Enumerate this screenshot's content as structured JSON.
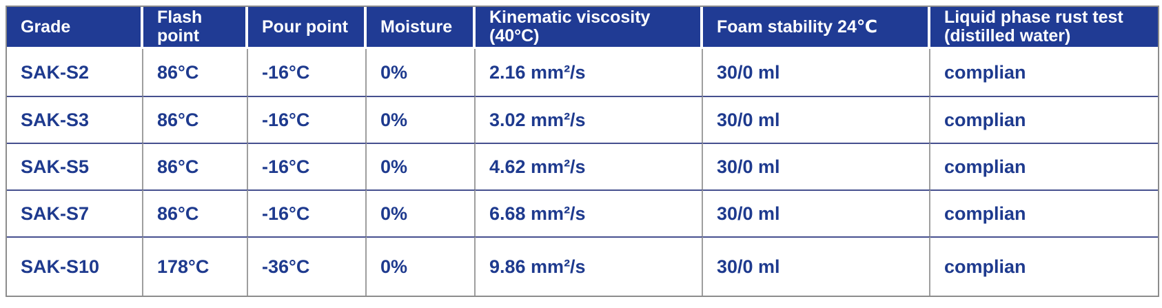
{
  "colors": {
    "header_bg": "#203b94",
    "header_text": "#ffffff",
    "cell_text": "#1e3a8e",
    "row_divider": "#454f8e",
    "column_divider": "#9e9e9e",
    "outer_border": "#8c8c8c"
  },
  "table": {
    "columns": [
      {
        "id": "grade",
        "label": "Grade"
      },
      {
        "id": "flash-point",
        "label": "Flash point"
      },
      {
        "id": "pour-point",
        "label": "Pour point"
      },
      {
        "id": "moisture",
        "label": "Moisture"
      },
      {
        "id": "kinematic-viscosity",
        "label": "Kinematic viscosity\n(40°C)"
      },
      {
        "id": "foam-stability",
        "label": "Foam stability 24℃"
      },
      {
        "id": "rust-test",
        "label": "Liquid phase rust test\n(distilled water)"
      }
    ],
    "rows": [
      {
        "cells": [
          "SAK-S2",
          "86°C",
          "-16°C",
          "0%",
          "2.16 mm²/s",
          "30/0 ml",
          "complian"
        ]
      },
      {
        "cells": [
          "SAK-S3",
          "86°C",
          "-16°C",
          "0%",
          "3.02 mm²/s",
          "30/0 ml",
          "complian"
        ]
      },
      {
        "cells": [
          "SAK-S5",
          "86°C",
          "-16°C",
          "0%",
          "4.62 mm²/s",
          "30/0 ml",
          "complian"
        ]
      },
      {
        "cells": [
          "SAK-S7",
          "86°C",
          "-16°C",
          "0%",
          "6.68 mm²/s",
          "30/0 ml",
          "complian"
        ]
      },
      {
        "cells": [
          "SAK-S10",
          "178°C",
          "-36°C",
          "0%",
          "9.86 mm²/s",
          "30/0 ml",
          "complian"
        ]
      }
    ]
  }
}
